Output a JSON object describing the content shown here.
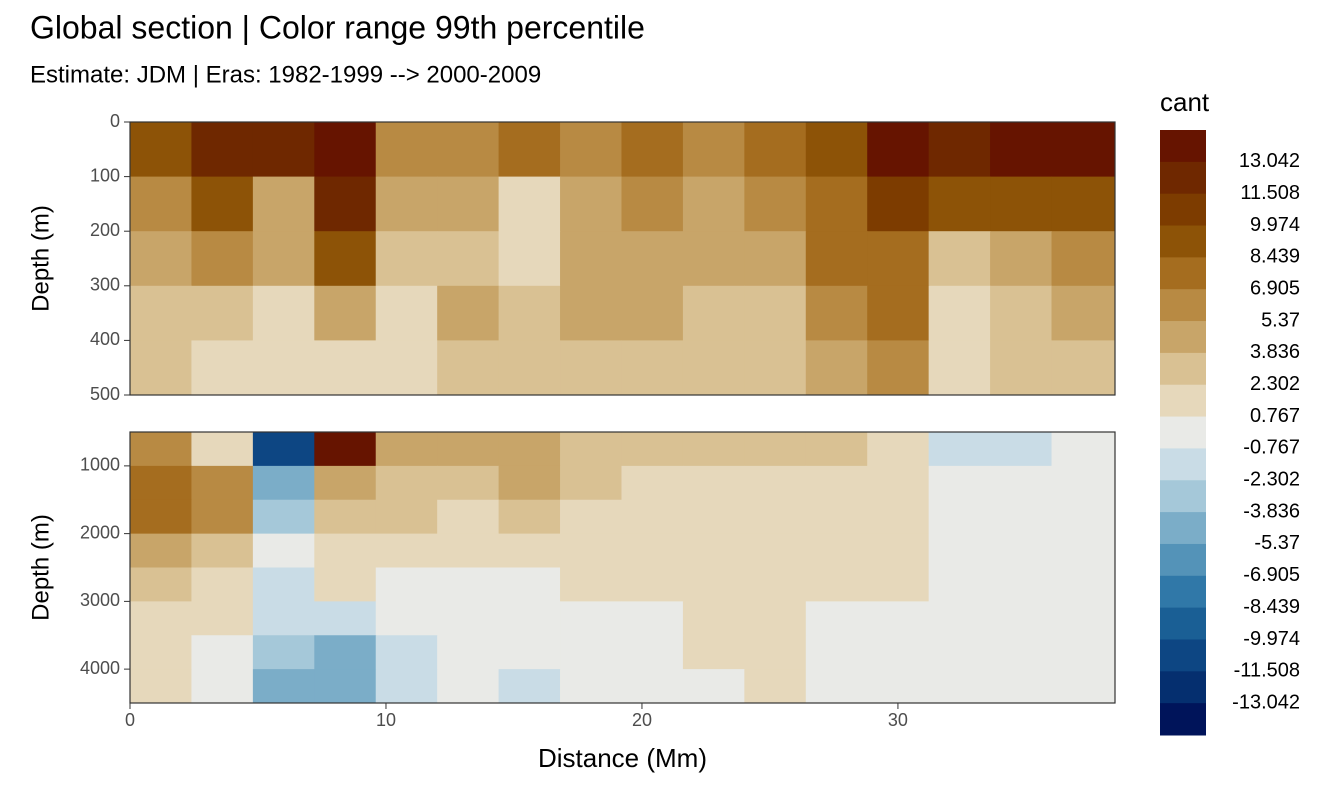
{
  "chart_data": [
    {
      "type": "contour",
      "title": "Global section | Color range 99th percentile",
      "subtitle": "Estimate: JDM  | Eras: 1982-1999 --> 2000-2009",
      "y_label": "Depth (m)",
      "legend": {
        "title": "cant",
        "breaks": [
          13.042,
          11.508,
          9.974,
          8.439,
          6.905,
          5.37,
          3.836,
          2.302,
          0.767,
          -0.767,
          -2.302,
          -3.836,
          -5.37,
          -6.905,
          -8.439,
          -9.974,
          -11.508,
          -13.042
        ],
        "colors": [
          "#661400",
          "#6f2800",
          "#7d3c00",
          "#8d5307",
          "#a56d1f",
          "#b88a43",
          "#c8a569",
          "#d9c193",
          "#e6d8bb",
          "#e9eae7",
          "#c9dce6",
          "#a5c8d9",
          "#7badc8",
          "#5493b8",
          "#3078a8",
          "#1a5f95",
          "#0d4683",
          "#052f6f",
          "#00145a"
        ]
      },
      "xlim": [
        0,
        38.48
      ],
      "ylim": [
        0,
        500
      ],
      "yticks": [
        0,
        100,
        200,
        300,
        400,
        500
      ],
      "x_edges": [
        0,
        2.4,
        4.8,
        7.2,
        9.6,
        12,
        14.4,
        16.8,
        19.2,
        21.6,
        24,
        26.4,
        28.8,
        31.2,
        33.6,
        36,
        38.48
      ],
      "y_edges": [
        0,
        100,
        200,
        300,
        400,
        500
      ],
      "values": [
        [
          9,
          13,
          13,
          14,
          6,
          6,
          7,
          6,
          7,
          6,
          7,
          9,
          14,
          12,
          14,
          14
        ],
        [
          6,
          9,
          5,
          13,
          4,
          4,
          2,
          5,
          6,
          5,
          6,
          8,
          10,
          9,
          9,
          9
        ],
        [
          4,
          6,
          5,
          9,
          3,
          3,
          1,
          4,
          5,
          4,
          4,
          7,
          8,
          3,
          5,
          6
        ],
        [
          3,
          3,
          2,
          5,
          2,
          4,
          3,
          4,
          4,
          3,
          3,
          6,
          7,
          2,
          3,
          4
        ],
        [
          3,
          2,
          1,
          2,
          1,
          3,
          3,
          3,
          3,
          3,
          3,
          5,
          6,
          1,
          3,
          3
        ]
      ]
    },
    {
      "type": "contour",
      "y_label": "Depth (m)",
      "x_label": "Distance (Mm)",
      "xlim": [
        0,
        38.48
      ],
      "ylim": [
        500,
        4500
      ],
      "xticks": [
        0,
        10,
        20,
        30
      ],
      "yticks": [
        {
          "value": 1000,
          "label": "1000"
        },
        2000,
        3000,
        4000
      ],
      "x_edges": [
        0,
        2.4,
        4.8,
        7.2,
        9.6,
        12,
        14.4,
        16.8,
        19.2,
        21.6,
        24,
        26.4,
        28.8,
        31.2,
        33.6,
        36,
        38.48
      ],
      "y_edges": [
        500,
        1000,
        1500,
        2000,
        2500,
        3000,
        3500,
        4000,
        4500
      ],
      "values": [
        [
          6,
          2,
          -10,
          14,
          5,
          4,
          5,
          3,
          3,
          3,
          3,
          3,
          2,
          -1,
          -1,
          0
        ],
        [
          7,
          6,
          -4,
          4,
          3,
          3,
          4,
          3,
          2,
          2,
          2,
          2,
          1,
          0,
          0,
          0
        ],
        [
          7,
          6,
          -3,
          3,
          3,
          2,
          3,
          2,
          2,
          2,
          2,
          2,
          1,
          0,
          0,
          0
        ],
        [
          4,
          3,
          0,
          2,
          2,
          1,
          2,
          2,
          1,
          1,
          2,
          1,
          1,
          0,
          0,
          0
        ],
        [
          3,
          2,
          -1,
          1,
          0,
          0,
          0,
          1,
          1,
          1,
          1,
          1,
          1,
          0,
          0,
          0
        ],
        [
          2,
          1,
          -2,
          -1,
          0,
          0,
          0,
          0,
          0,
          1,
          1,
          0,
          0,
          0,
          0,
          0
        ],
        [
          1,
          0,
          -3,
          -4,
          -1,
          0,
          0,
          0,
          0,
          1,
          1,
          0,
          0,
          0,
          0,
          0
        ],
        [
          1,
          0,
          -4,
          -4,
          -2,
          0,
          -1,
          0,
          0,
          0,
          1,
          0,
          0,
          0,
          0,
          0
        ]
      ]
    }
  ]
}
